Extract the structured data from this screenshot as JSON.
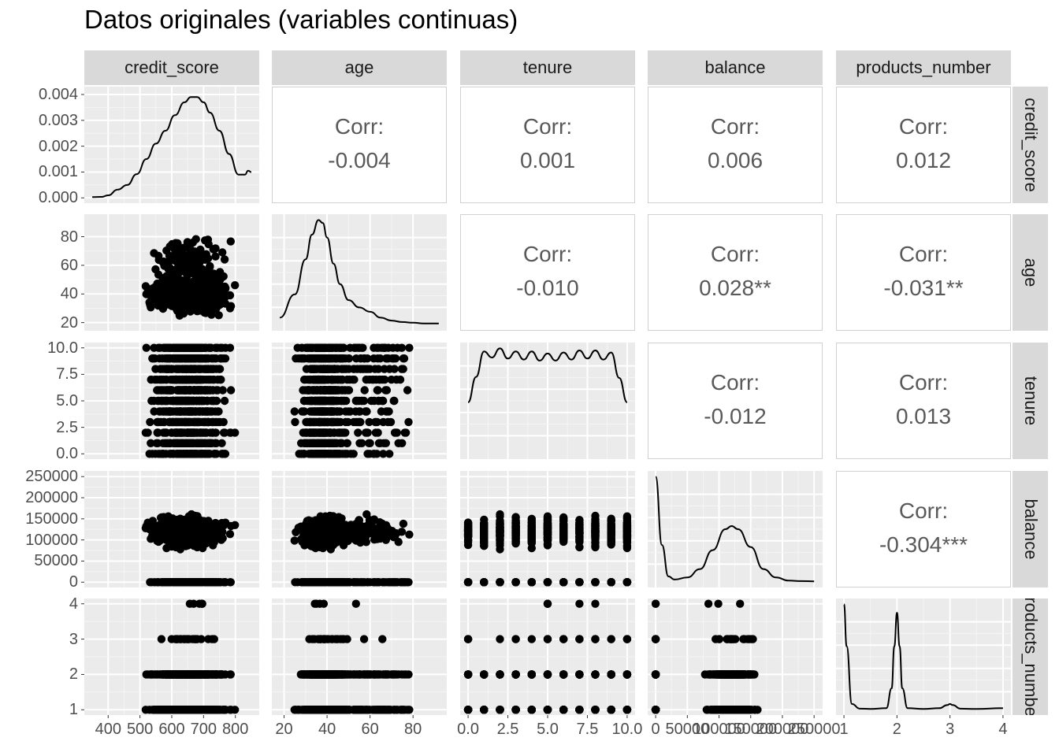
{
  "title": "Datos originales (variables continuas)",
  "variables": [
    "credit_score",
    "age",
    "tenure",
    "balance",
    "products_number"
  ],
  "row_strip_labels": [
    "credit_score",
    "age",
    "tenure",
    "balance",
    "roducts_numbe"
  ],
  "correlation_label": "Corr:",
  "correlations": [
    {
      "row": 0,
      "col": 1,
      "value": "-0.004"
    },
    {
      "row": 0,
      "col": 2,
      "value": "0.001"
    },
    {
      "row": 0,
      "col": 3,
      "value": "0.006"
    },
    {
      "row": 0,
      "col": 4,
      "value": "0.012"
    },
    {
      "row": 1,
      "col": 2,
      "value": "-0.010"
    },
    {
      "row": 1,
      "col": 3,
      "value": "0.028**"
    },
    {
      "row": 1,
      "col": 4,
      "value": "-0.031**"
    },
    {
      "row": 2,
      "col": 3,
      "value": "-0.012"
    },
    {
      "row": 2,
      "col": 4,
      "value": "0.013"
    },
    {
      "row": 3,
      "col": 4,
      "value": "-0.304***"
    }
  ],
  "chart_data": {
    "type": "scatter",
    "title": "Datos originales (variables continuas)",
    "subtype": "scatterplot-matrix (ggpairs)",
    "axes": {
      "credit_score": {
        "range": [
          350,
          850
        ],
        "ticks": [
          400,
          500,
          600,
          700,
          800
        ],
        "tick_labels": [
          "400",
          "500",
          "600",
          "700",
          "800"
        ]
      },
      "age": {
        "range": [
          18,
          92
        ],
        "ticks": [
          20,
          40,
          60,
          80
        ],
        "tick_labels": [
          "20",
          "40",
          "60",
          "80"
        ]
      },
      "tenure": {
        "range": [
          0,
          10
        ],
        "ticks": [
          0,
          2.5,
          5,
          7.5,
          10
        ],
        "tick_labels": [
          "0.0",
          "2.5",
          "5.0",
          "7.5",
          "10.0"
        ]
      },
      "balance": {
        "range": [
          0,
          250898
        ],
        "ticks": [
          0,
          50000,
          100000,
          150000,
          200000,
          250000
        ],
        "tick_labels": [
          "0",
          "50000",
          "100000",
          "150000",
          "200000",
          "250000"
        ]
      },
      "products_number": {
        "range": [
          1,
          4
        ],
        "ticks": [
          1,
          2,
          3,
          4
        ],
        "tick_labels": [
          "1",
          "2",
          "3",
          "4"
        ]
      }
    },
    "density_axis": {
      "variable": "credit_score",
      "ticks": [
        0,
        0.001,
        0.002,
        0.003,
        0.004
      ],
      "tick_labels": [
        "0.000",
        "0.001",
        "0.002",
        "0.003",
        "0.004"
      ]
    },
    "densities": {
      "credit_score": {
        "x": [
          350,
          380,
          400,
          430,
          460,
          490,
          520,
          550,
          580,
          610,
          640,
          660,
          680,
          700,
          720,
          750,
          780,
          810,
          830,
          840,
          850
        ],
        "y": [
          3e-05,
          4e-05,
          0.0001,
          0.00032,
          0.0005,
          0.00092,
          0.0015,
          0.0021,
          0.0026,
          0.0032,
          0.0037,
          0.0039,
          0.0039,
          0.0037,
          0.0033,
          0.0026,
          0.0017,
          0.0009,
          0.0009,
          0.00105,
          0.001
        ]
      },
      "age": {
        "x": [
          18,
          25,
          30,
          33,
          36,
          38,
          40,
          43,
          46,
          50,
          55,
          60,
          65,
          70,
          75,
          80,
          85,
          92
        ],
        "y": [
          0.005,
          0.021,
          0.045,
          0.062,
          0.072,
          0.07,
          0.06,
          0.042,
          0.028,
          0.017,
          0.012,
          0.009,
          0.005,
          0.003,
          0.002,
          0.0015,
          0.001,
          0.001
        ]
      },
      "tenure": {
        "x": [
          0,
          0.5,
          1,
          1.5,
          2,
          2.5,
          3,
          3.5,
          4,
          4.5,
          5,
          5.5,
          6,
          6.5,
          7,
          7.5,
          8,
          8.5,
          9,
          9.5,
          10
        ],
        "y": [
          0.05,
          0.075,
          0.1,
          0.094,
          0.103,
          0.093,
          0.1,
          0.092,
          0.1,
          0.091,
          0.098,
          0.091,
          0.099,
          0.092,
          0.101,
          0.093,
          0.101,
          0.092,
          0.099,
          0.074,
          0.05
        ]
      },
      "balance": {
        "x": [
          0,
          10000,
          20000,
          30000,
          50000,
          70000,
          90000,
          110000,
          120000,
          130000,
          150000,
          170000,
          190000,
          210000,
          230000,
          250000
        ],
        "y": [
          1.0,
          0.35,
          0.05,
          0.02,
          0.04,
          0.12,
          0.3,
          0.5,
          0.53,
          0.5,
          0.33,
          0.12,
          0.04,
          0.01,
          0.005,
          0.003
        ]
      },
      "products_number": {
        "x": [
          1,
          1.05,
          1.15,
          1.3,
          1.5,
          1.8,
          1.9,
          1.95,
          2,
          2.05,
          2.1,
          2.2,
          2.5,
          2.8,
          2.95,
          3,
          3.05,
          3.2,
          3.5,
          4
        ],
        "y": [
          1.0,
          0.6,
          0.05,
          0.005,
          0.003,
          0.01,
          0.2,
          0.6,
          0.92,
          0.6,
          0.2,
          0.01,
          0.003,
          0.01,
          0.04,
          0.05,
          0.04,
          0.005,
          0.002,
          0.01
        ]
      }
    },
    "scatter_description": "Lower-triangle panels show scatterplots of ~10000 observations for each variable pair"
  }
}
